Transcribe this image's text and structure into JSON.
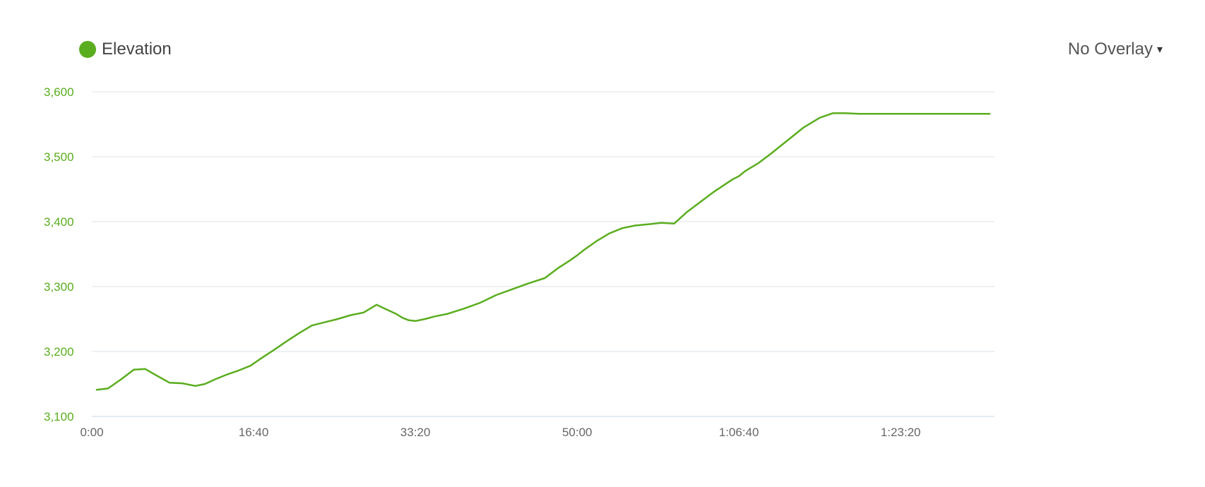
{
  "legend": {
    "label": "Elevation",
    "color": "#5aad1f"
  },
  "overlay": {
    "label": "No Overlay",
    "arrow": "▾"
  },
  "chart_data": {
    "type": "line",
    "grid": true,
    "ylim": [
      3100,
      3600
    ],
    "xlim": [
      0,
      5580
    ],
    "y_ticks": [
      {
        "value": 3600,
        "label": "3,600"
      },
      {
        "value": 3500,
        "label": "3,500"
      },
      {
        "value": 3400,
        "label": "3,400"
      },
      {
        "value": 3300,
        "label": "3,300"
      },
      {
        "value": 3200,
        "label": "3,200"
      },
      {
        "value": 3100,
        "label": "3,100"
      }
    ],
    "x_ticks": [
      {
        "value": 0,
        "label": "0:00"
      },
      {
        "value": 1000,
        "label": "16:40"
      },
      {
        "value": 2000,
        "label": "33:20"
      },
      {
        "value": 3000,
        "label": "50:00"
      },
      {
        "value": 4000,
        "label": "1:06:40"
      },
      {
        "value": 5000,
        "label": "1:23:20"
      }
    ],
    "series": [
      {
        "name": "Elevation",
        "color": "#5aad1f",
        "x": [
          30,
          100,
          180,
          260,
          330,
          400,
          480,
          560,
          640,
          700,
          760,
          830,
          900,
          980,
          1050,
          1130,
          1200,
          1280,
          1360,
          1440,
          1520,
          1600,
          1680,
          1760,
          1820,
          1880,
          1920,
          1960,
          2000,
          2060,
          2120,
          2200,
          2300,
          2400,
          2500,
          2600,
          2700,
          2800,
          2880,
          2960,
          3000,
          3040,
          3120,
          3200,
          3280,
          3360,
          3440,
          3520,
          3600,
          3680,
          3760,
          3840,
          3900,
          3960,
          4000,
          4040,
          4120,
          4200,
          4300,
          4400,
          4500,
          4580,
          4660,
          4740,
          4820,
          4900,
          4980,
          5060,
          5140,
          5200,
          5260,
          5320,
          5380,
          5440,
          5500,
          5550
        ],
        "values": [
          3141,
          3143,
          3157,
          3172,
          3173,
          3163,
          3152,
          3151,
          3147,
          3150,
          3157,
          3164,
          3170,
          3178,
          3190,
          3203,
          3215,
          3228,
          3240,
          3245,
          3250,
          3256,
          3260,
          3272,
          3265,
          3258,
          3252,
          3248,
          3247,
          3250,
          3254,
          3258,
          3266,
          3275,
          3287,
          3296,
          3305,
          3313,
          3328,
          3341,
          3348,
          3356,
          3370,
          3382,
          3390,
          3394,
          3396,
          3398,
          3397,
          3415,
          3430,
          3445,
          3455,
          3465,
          3470,
          3478,
          3490,
          3505,
          3525,
          3545,
          3560,
          3567,
          3567,
          3566,
          3566,
          3566,
          3566,
          3566,
          3566,
          3566,
          3566,
          3566,
          3566,
          3566,
          3566,
          3566
        ]
      }
    ]
  }
}
